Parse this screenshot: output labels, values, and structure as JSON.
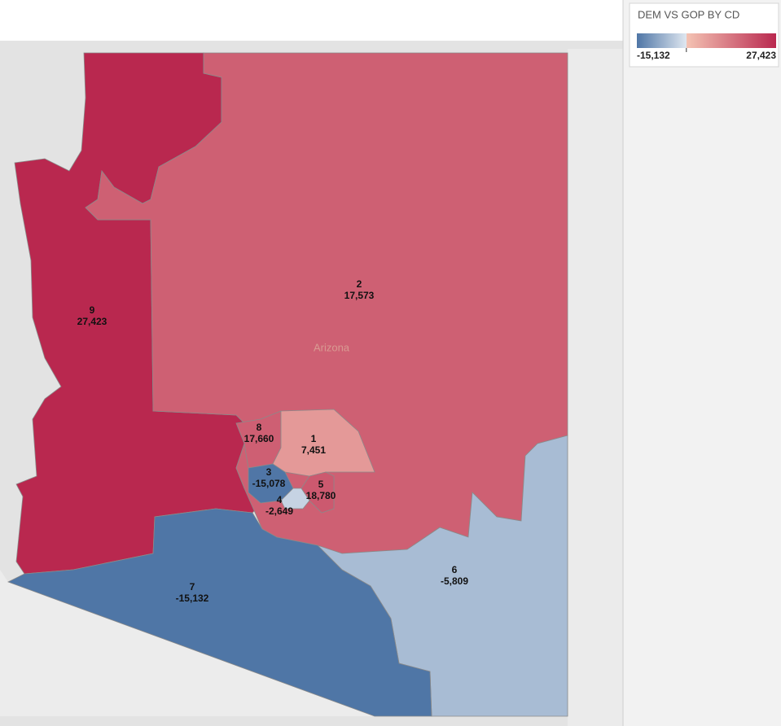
{
  "map_label": "Arizona",
  "legend": {
    "title": "DEM VS GOP BY CD",
    "min": {
      "value": -15132,
      "label": "-15,132"
    },
    "max": {
      "value": 27423,
      "label": "27,423"
    },
    "midpoint": 0,
    "colors": [
      "#4f76a6",
      "#dfe7f0",
      "#f4c3b3",
      "#b9284f"
    ]
  },
  "districts": [
    {
      "name": "9",
      "value": 27423,
      "label": "27,423"
    },
    {
      "name": "2",
      "value": 17573,
      "label": "17,573"
    },
    {
      "name": "6",
      "value": -5809,
      "label": "-5,809"
    },
    {
      "name": "7",
      "value": -15132,
      "label": "-15,132"
    },
    {
      "name": "8",
      "value": 17660,
      "label": "17,660"
    },
    {
      "name": "1",
      "value": 7451,
      "label": "7,451"
    },
    {
      "name": "3",
      "value": -15078,
      "label": "-15,078"
    },
    {
      "name": "5",
      "value": 18780,
      "label": "18,780"
    },
    {
      "name": "4",
      "value": -2649,
      "label": "-2,649"
    }
  ]
}
